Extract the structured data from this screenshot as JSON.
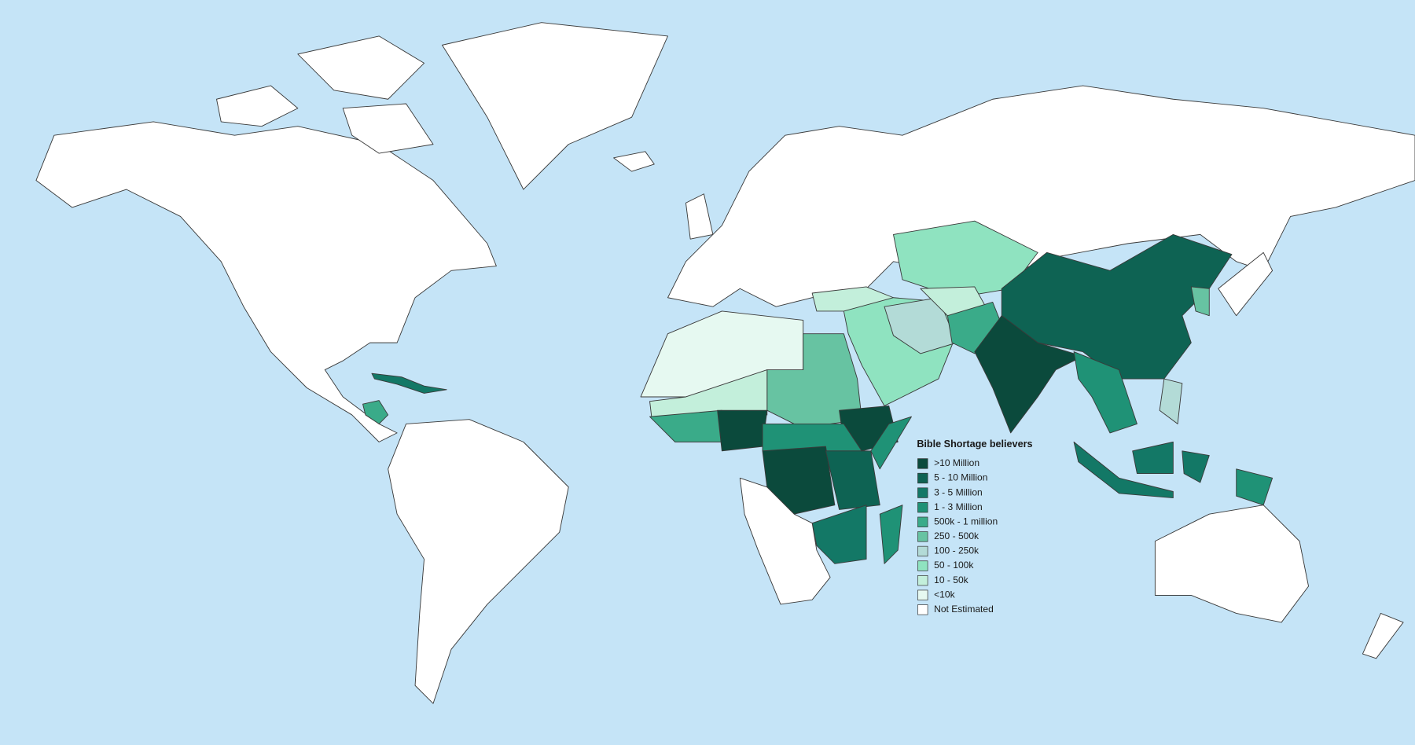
{
  "legend": {
    "title": "Bible Shortage believers",
    "items": [
      {
        "label": ">10 Million",
        "color": "#0b4a3c"
      },
      {
        "label": "5 - 10 Million",
        "color": "#0e6353"
      },
      {
        "label": "3 - 5 Million",
        "color": "#137866"
      },
      {
        "label": "1 - 3 Million",
        "color": "#1f9276"
      },
      {
        "label": "500k - 1 million",
        "color": "#3aab89"
      },
      {
        "label": "250 - 500k",
        "color": "#67c3a2"
      },
      {
        "label": "100 - 250k",
        "color": "#b3dbd7"
      },
      {
        "label": "50 - 100k",
        "color": "#8fe3c0"
      },
      {
        "label": "10 - 50k",
        "color": "#c3efdb"
      },
      {
        "label": "<10k",
        "color": "#e6f9f1"
      },
      {
        "label": "Not Estimated",
        "color": "#ffffff"
      }
    ]
  }
}
